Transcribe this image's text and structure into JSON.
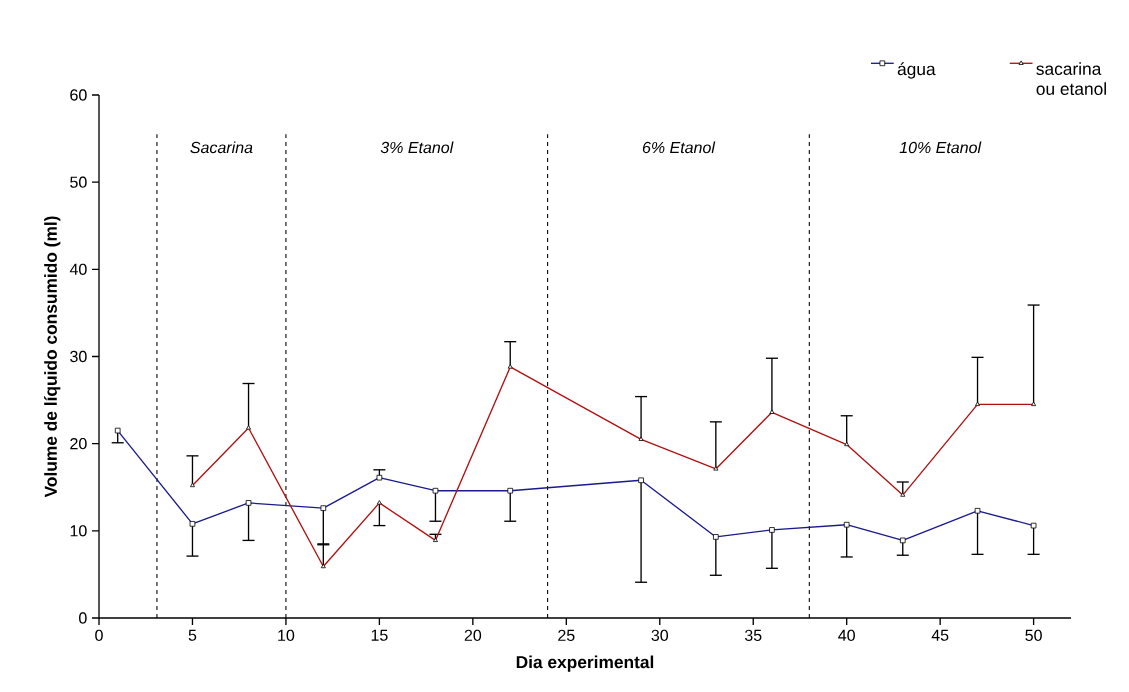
{
  "chart_data": {
    "type": "line",
    "xlabel": "Dia experimental",
    "ylabel": "Volume de líquido consumido (ml)",
    "xlim": [
      0,
      52
    ],
    "ylim": [
      0,
      60
    ],
    "xticks": [
      0,
      5,
      10,
      15,
      20,
      25,
      30,
      35,
      40,
      45,
      50
    ],
    "yticks": [
      0,
      10,
      20,
      30,
      40,
      50,
      60
    ],
    "legend": "top right",
    "line_style": "solid",
    "series": [
      {
        "name": "água",
        "color": "#1a1a8c",
        "marker": "square",
        "x": [
          1,
          5,
          8,
          12,
          15,
          18,
          22,
          29,
          33,
          36,
          40,
          43,
          47,
          50
        ],
        "values": [
          21.5,
          10.8,
          13.2,
          12.6,
          16.1,
          14.6,
          14.6,
          15.8,
          9.3,
          10.1,
          10.7,
          8.9,
          12.3,
          10.6
        ],
        "errors": [
          [
            20.1,
            21.5
          ],
          [
            7.1,
            10.8
          ],
          [
            8.9,
            13.2
          ],
          [
            8.5,
            12.6
          ],
          [
            16.1,
            17.0
          ],
          [
            11.1,
            14.6
          ],
          [
            11.1,
            14.6
          ],
          [
            4.1,
            15.8
          ],
          [
            4.9,
            9.3
          ],
          [
            5.7,
            10.1
          ],
          [
            7.0,
            10.7
          ],
          [
            7.2,
            8.9
          ],
          [
            7.3,
            12.3
          ],
          [
            7.3,
            10.6
          ]
        ]
      },
      {
        "name": "sacarina ou etanol",
        "color": "#b01010",
        "marker": "triangle",
        "x": [
          5,
          8,
          12,
          15,
          18,
          22,
          29,
          33,
          36,
          40,
          43,
          47,
          50
        ],
        "values": [
          15.2,
          21.8,
          5.9,
          13.2,
          8.9,
          28.8,
          20.5,
          17.1,
          23.6,
          19.9,
          14.1,
          24.5,
          24.5
        ],
        "errors": [
          [
            15.2,
            18.6
          ],
          [
            21.8,
            26.9
          ],
          [
            5.9,
            8.4
          ],
          [
            10.6,
            13.2
          ],
          [
            8.9,
            9.6
          ],
          [
            28.8,
            31.7
          ],
          [
            20.5,
            25.4
          ],
          [
            17.1,
            22.5
          ],
          [
            23.6,
            29.8
          ],
          [
            19.9,
            23.2
          ],
          [
            14.1,
            15.6
          ],
          [
            24.5,
            29.9
          ],
          [
            24.5,
            35.9
          ]
        ]
      }
    ],
    "ref_lines": [
      {
        "axis": "x",
        "value": 3.1,
        "color": "#000000",
        "line_style": "dashed"
      },
      {
        "axis": "x",
        "value": 10,
        "color": "#000000",
        "line_style": "dashed"
      },
      {
        "axis": "x",
        "value": 24,
        "color": "#000000",
        "line_style": "dashed"
      },
      {
        "axis": "x",
        "value": 38,
        "color": "#000000",
        "line_style": "dashed"
      }
    ],
    "annotations": [
      "Sacarina",
      "3% Etanol",
      "6% Etanol",
      "10% Etanol"
    ]
  }
}
